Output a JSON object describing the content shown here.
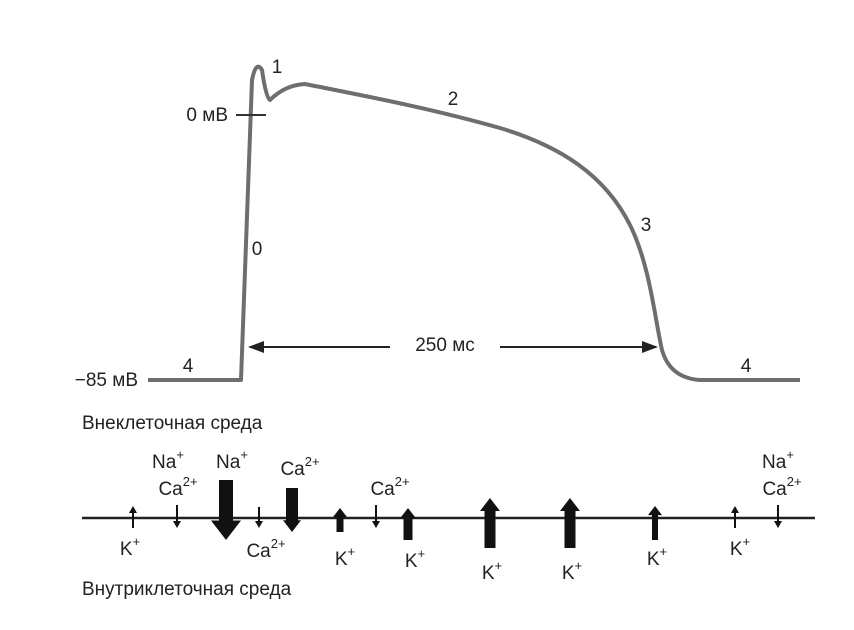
{
  "axis_labels": {
    "zero": "0 мВ",
    "rest": "−85 мВ"
  },
  "duration": "250 мс",
  "phases": [
    "0",
    "1",
    "2",
    "3",
    "4",
    "4"
  ],
  "regions": {
    "outside": "Внеклеточная среда",
    "inside": "Внутриклеточная среда"
  },
  "ions": [
    {
      "base": "K",
      "charge": "+"
    },
    {
      "base": "Na",
      "charge": "+"
    },
    {
      "base": "Ca",
      "charge": "2+"
    },
    {
      "base": "Na",
      "charge": "+"
    },
    {
      "base": "Ca",
      "charge": "2+"
    },
    {
      "base": "Ca",
      "charge": "2+"
    },
    {
      "base": "K",
      "charge": "+"
    },
    {
      "base": "Ca",
      "charge": "2+"
    },
    {
      "base": "K",
      "charge": "+"
    },
    {
      "base": "K",
      "charge": "+"
    },
    {
      "base": "K",
      "charge": "+"
    },
    {
      "base": "K",
      "charge": "+"
    },
    {
      "base": "K",
      "charge": "+"
    },
    {
      "base": "Na",
      "charge": "+"
    },
    {
      "base": "Ca",
      "charge": "2+"
    }
  ]
}
